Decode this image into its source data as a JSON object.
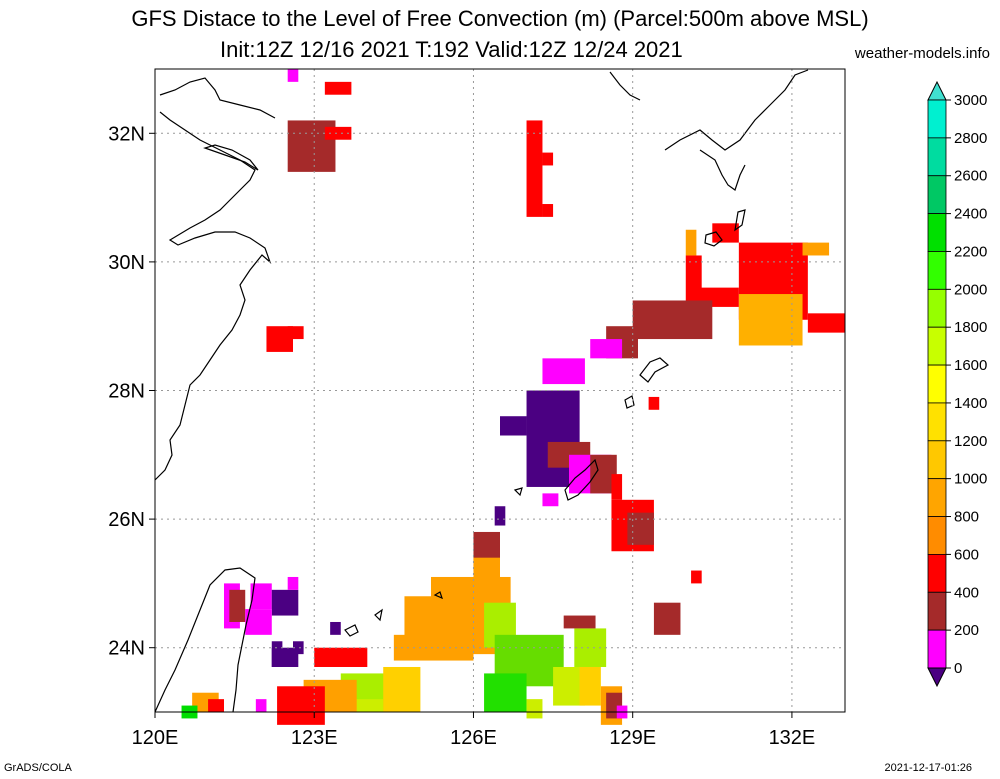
{
  "title": {
    "line1": "GFS Distace to the Level of Free Convection (m) (Parcel:500m above MSL)",
    "line2": "Init:12Z 12/16 2021 T:192 Valid:12Z 12/24 2021",
    "site": "weather-models.info"
  },
  "footer": {
    "left": "GrADS/COLA",
    "right": "2021-12-17-01:26"
  },
  "map": {
    "lon_range": [
      120,
      133
    ],
    "lat_range": [
      23,
      33
    ],
    "x_ticks": [
      {
        "value": 120,
        "label": "120E"
      },
      {
        "value": 123,
        "label": "123E"
      },
      {
        "value": 126,
        "label": "126E"
      },
      {
        "value": 129,
        "label": "129E"
      },
      {
        "value": 132,
        "label": "132E"
      }
    ],
    "y_ticks": [
      {
        "value": 24,
        "label": "24N"
      },
      {
        "value": 26,
        "label": "26N"
      },
      {
        "value": 28,
        "label": "28N"
      },
      {
        "value": 30,
        "label": "30N"
      },
      {
        "value": 32,
        "label": "32N"
      }
    ],
    "grid": true
  },
  "colorbar": {
    "labels": [
      "0",
      "200",
      "400",
      "600",
      "800",
      "1000",
      "1200",
      "1400",
      "1600",
      "1800",
      "2000",
      "2200",
      "2400",
      "2600",
      "2800",
      "3000"
    ],
    "colors": [
      "#4b0082",
      "#ff00ff",
      "#a52a2a",
      "#ff0000",
      "#ff8c00",
      "#ffa500",
      "#ffc800",
      "#ffe100",
      "#ffff00",
      "#c8ff00",
      "#96ff00",
      "#32ff00",
      "#00e000",
      "#00c864",
      "#00dca0",
      "#00f0d0",
      "#40e0d0"
    ]
  },
  "field_blocks": [
    {
      "lon": 122.5,
      "lat": 32.2,
      "w": 0.9,
      "h": 0.8,
      "c": "#a52a2a"
    },
    {
      "lon": 123.2,
      "lat": 32.8,
      "w": 0.5,
      "h": 0.2,
      "c": "#ff0000"
    },
    {
      "lon": 123.2,
      "lat": 32.1,
      "w": 0.5,
      "h": 0.2,
      "c": "#ff0000"
    },
    {
      "lon": 122.5,
      "lat": 33.0,
      "w": 0.2,
      "h": 0.2,
      "c": "#ff00ff"
    },
    {
      "lon": 127.0,
      "lat": 32.2,
      "w": 0.3,
      "h": 1.5,
      "c": "#ff0000"
    },
    {
      "lon": 127.3,
      "lat": 31.7,
      "w": 0.2,
      "h": 0.2,
      "c": "#ff0000"
    },
    {
      "lon": 127.3,
      "lat": 30.9,
      "w": 0.2,
      "h": 0.2,
      "c": "#ff0000"
    },
    {
      "lon": 122.1,
      "lat": 29.0,
      "w": 0.5,
      "h": 0.4,
      "c": "#ff0000"
    },
    {
      "lon": 122.5,
      "lat": 29.0,
      "w": 0.3,
      "h": 0.2,
      "c": "#ff0000"
    },
    {
      "lon": 130.5,
      "lat": 30.6,
      "w": 0.5,
      "h": 0.3,
      "c": "#ff0000"
    },
    {
      "lon": 130.0,
      "lat": 30.1,
      "w": 0.3,
      "h": 1.0,
      "c": "#ff0000"
    },
    {
      "lon": 130.2,
      "lat": 29.6,
      "w": 0.8,
      "h": 0.3,
      "c": "#ff0000"
    },
    {
      "lon": 131.0,
      "lat": 30.3,
      "w": 1.3,
      "h": 1.2,
      "c": "#ff0000"
    },
    {
      "lon": 131.0,
      "lat": 29.5,
      "w": 1.2,
      "h": 0.8,
      "c": "#ffb000"
    },
    {
      "lon": 132.3,
      "lat": 29.2,
      "w": 0.7,
      "h": 0.3,
      "c": "#ff0000"
    },
    {
      "lon": 130.0,
      "lat": 30.5,
      "w": 0.2,
      "h": 0.4,
      "c": "#ffa000"
    },
    {
      "lon": 132.2,
      "lat": 30.3,
      "w": 0.5,
      "h": 0.2,
      "c": "#ffa000"
    },
    {
      "lon": 129.0,
      "lat": 29.4,
      "w": 1.5,
      "h": 0.6,
      "c": "#a52a2a"
    },
    {
      "lon": 128.5,
      "lat": 29.0,
      "w": 0.6,
      "h": 0.5,
      "c": "#a52a2a"
    },
    {
      "lon": 128.2,
      "lat": 28.8,
      "w": 0.6,
      "h": 0.3,
      "c": "#ff00ff"
    },
    {
      "lon": 127.3,
      "lat": 28.5,
      "w": 0.8,
      "h": 0.4,
      "c": "#ff00ff"
    },
    {
      "lon": 127.0,
      "lat": 28.0,
      "w": 1.0,
      "h": 1.5,
      "c": "#4b0082"
    },
    {
      "lon": 126.5,
      "lat": 27.6,
      "w": 0.5,
      "h": 0.3,
      "c": "#4b0082"
    },
    {
      "lon": 127.4,
      "lat": 27.2,
      "w": 0.8,
      "h": 0.4,
      "c": "#a52a2a"
    },
    {
      "lon": 127.8,
      "lat": 27.0,
      "w": 0.8,
      "h": 0.6,
      "c": "#ff00ff"
    },
    {
      "lon": 128.2,
      "lat": 27.0,
      "w": 0.5,
      "h": 0.6,
      "c": "#a52a2a"
    },
    {
      "lon": 128.6,
      "lat": 26.7,
      "w": 0.2,
      "h": 0.4,
      "c": "#ff0000"
    },
    {
      "lon": 127.3,
      "lat": 26.4,
      "w": 0.3,
      "h": 0.2,
      "c": "#ff00ff"
    },
    {
      "lon": 128.6,
      "lat": 26.3,
      "w": 0.8,
      "h": 0.8,
      "c": "#ff0000"
    },
    {
      "lon": 128.9,
      "lat": 26.1,
      "w": 0.5,
      "h": 0.5,
      "c": "#a52a2a"
    },
    {
      "lon": 129.3,
      "lat": 27.9,
      "w": 0.2,
      "h": 0.2,
      "c": "#ff0000"
    },
    {
      "lon": 130.1,
      "lat": 25.2,
      "w": 0.2,
      "h": 0.2,
      "c": "#ff0000"
    },
    {
      "lon": 129.4,
      "lat": 24.7,
      "w": 0.5,
      "h": 0.5,
      "c": "#a52a2a"
    },
    {
      "lon": 126.4,
      "lat": 26.2,
      "w": 0.2,
      "h": 0.3,
      "c": "#4b0082"
    },
    {
      "lon": 126.0,
      "lat": 25.8,
      "w": 0.5,
      "h": 0.6,
      "c": "#a52a2a"
    },
    {
      "lon": 126.0,
      "lat": 25.4,
      "w": 0.5,
      "h": 0.4,
      "c": "#ffa000"
    },
    {
      "lon": 125.2,
      "lat": 25.1,
      "w": 1.5,
      "h": 1.2,
      "c": "#ffa000"
    },
    {
      "lon": 124.7,
      "lat": 24.8,
      "w": 0.7,
      "h": 0.7,
      "c": "#ffa000"
    },
    {
      "lon": 124.5,
      "lat": 24.2,
      "w": 1.5,
      "h": 0.4,
      "c": "#ffa000"
    },
    {
      "lon": 126.2,
      "lat": 24.7,
      "w": 0.6,
      "h": 0.7,
      "c": "#aaee00"
    },
    {
      "lon": 126.4,
      "lat": 24.2,
      "w": 1.3,
      "h": 0.8,
      "c": "#66dd00"
    },
    {
      "lon": 126.2,
      "lat": 23.6,
      "w": 0.8,
      "h": 0.6,
      "c": "#22e000"
    },
    {
      "lon": 127.5,
      "lat": 23.7,
      "w": 0.6,
      "h": 0.6,
      "c": "#ccee00"
    },
    {
      "lon": 127.0,
      "lat": 23.2,
      "w": 0.3,
      "h": 0.3,
      "c": "#ccee00"
    },
    {
      "lon": 127.9,
      "lat": 24.3,
      "w": 0.6,
      "h": 0.6,
      "c": "#aaee00"
    },
    {
      "lon": 128.0,
      "lat": 23.7,
      "w": 0.4,
      "h": 0.6,
      "c": "#ffd000"
    },
    {
      "lon": 128.4,
      "lat": 23.4,
      "w": 0.4,
      "h": 0.6,
      "c": "#ffa000"
    },
    {
      "lon": 127.7,
      "lat": 24.5,
      "w": 0.6,
      "h": 0.2,
      "c": "#a52a2a"
    },
    {
      "lon": 128.5,
      "lat": 23.3,
      "w": 0.3,
      "h": 0.4,
      "c": "#a52a2a"
    },
    {
      "lon": 128.7,
      "lat": 23.1,
      "w": 0.2,
      "h": 0.2,
      "c": "#ff00ff"
    },
    {
      "lon": 123.0,
      "lat": 24.0,
      "w": 1.0,
      "h": 0.3,
      "c": "#ff0000"
    },
    {
      "lon": 123.5,
      "lat": 23.6,
      "w": 1.2,
      "h": 0.6,
      "c": "#aaee00"
    },
    {
      "lon": 123.3,
      "lat": 23.2,
      "w": 1.0,
      "h": 0.2,
      "c": "#ccee00"
    },
    {
      "lon": 124.3,
      "lat": 23.7,
      "w": 0.7,
      "h": 0.7,
      "c": "#ffd000"
    },
    {
      "lon": 122.8,
      "lat": 23.5,
      "w": 1.0,
      "h": 0.5,
      "c": "#ffa000"
    },
    {
      "lon": 122.3,
      "lat": 23.4,
      "w": 0.9,
      "h": 0.6,
      "c": "#ff0000"
    },
    {
      "lon": 122.2,
      "lat": 24.0,
      "w": 0.5,
      "h": 0.3,
      "c": "#4b0082"
    },
    {
      "lon": 122.2,
      "lat": 24.1,
      "w": 0.2,
      "h": 0.4,
      "c": "#4b0082"
    },
    {
      "lon": 122.6,
      "lat": 24.1,
      "w": 0.2,
      "h": 0.2,
      "c": "#4b0082"
    },
    {
      "lon": 123.3,
      "lat": 24.4,
      "w": 0.2,
      "h": 0.2,
      "c": "#4b0082"
    },
    {
      "lon": 121.9,
      "lat": 23.2,
      "w": 0.2,
      "h": 0.2,
      "c": "#ff00ff"
    },
    {
      "lon": 121.3,
      "lat": 25.0,
      "w": 0.3,
      "h": 0.7,
      "c": "#ff00ff"
    },
    {
      "lon": 121.4,
      "lat": 24.9,
      "w": 0.3,
      "h": 0.5,
      "c": "#a52a2a"
    },
    {
      "lon": 121.8,
      "lat": 25.0,
      "w": 0.4,
      "h": 0.4,
      "c": "#ff00ff"
    },
    {
      "lon": 122.2,
      "lat": 24.9,
      "w": 0.5,
      "h": 0.4,
      "c": "#4b0082"
    },
    {
      "lon": 121.7,
      "lat": 24.6,
      "w": 0.5,
      "h": 0.4,
      "c": "#ff00ff"
    },
    {
      "lon": 122.5,
      "lat": 25.1,
      "w": 0.2,
      "h": 0.2,
      "c": "#ff00ff"
    },
    {
      "lon": 120.7,
      "lat": 23.3,
      "w": 0.5,
      "h": 0.3,
      "c": "#ffa000"
    },
    {
      "lon": 120.5,
      "lat": 23.1,
      "w": 0.3,
      "h": 0.2,
      "c": "#00dd00"
    },
    {
      "lon": 121.0,
      "lat": 23.2,
      "w": 0.3,
      "h": 0.2,
      "c": "#ff0000"
    }
  ]
}
